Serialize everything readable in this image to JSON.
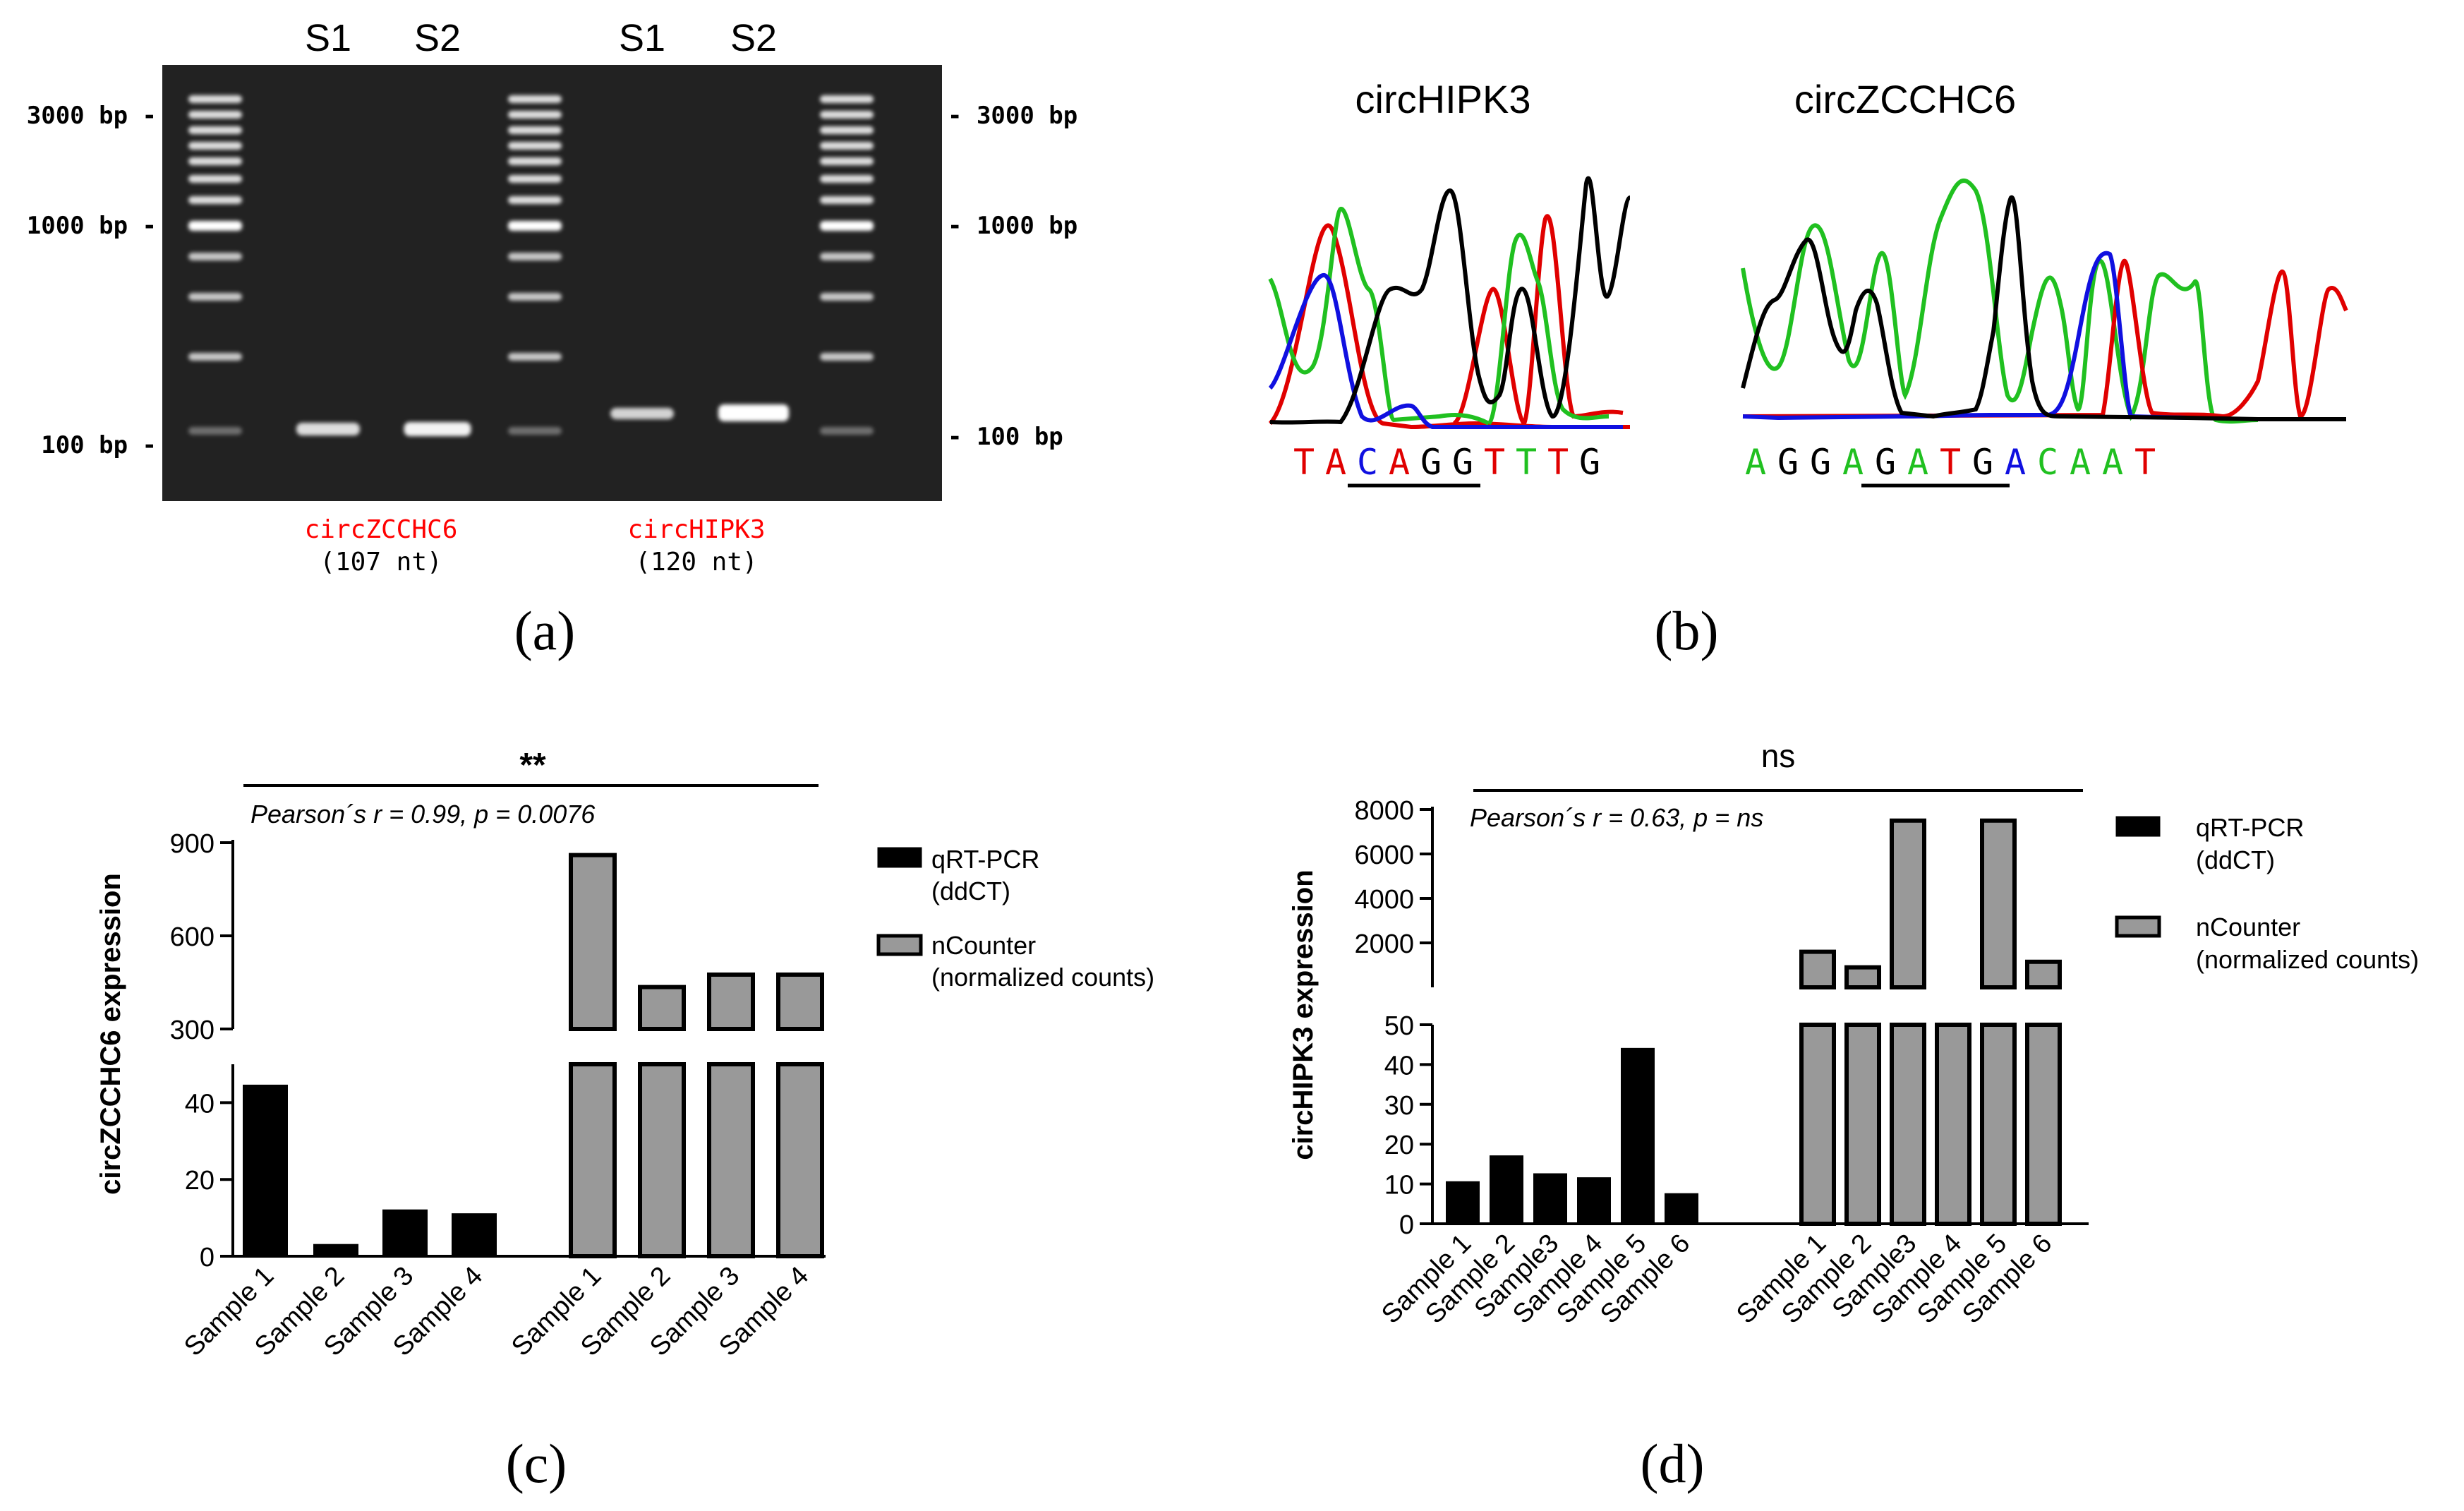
{
  "panels": {
    "a": {
      "label": "(a)",
      "lane_headers": [
        "S1",
        "S2",
        "S1",
        "S2"
      ],
      "ladder_left": [
        "3000 bp -",
        "1000 bp -",
        "100 bp -"
      ],
      "ladder_right": [
        "- 3000 bp",
        "- 1000 bp",
        "- 100 bp"
      ],
      "products": [
        {
          "name": "circZCCHC6",
          "size": "(107 nt)"
        },
        {
          "name": "circHIPK3",
          "size": "(120 nt)"
        }
      ],
      "colors": {
        "product_name": "#ff0000",
        "gel_bg": "#202020"
      }
    },
    "b": {
      "label": "(b)",
      "titles": [
        "circHIPK3",
        "circZCCHC6"
      ],
      "seq1": [
        "T",
        "A",
        "C",
        "A",
        "G",
        "G",
        "T",
        "T",
        "T",
        "G"
      ],
      "seq1_colors": [
        "#e00000",
        "#e00000",
        "#1010e0",
        "#e00000",
        "#000000",
        "#000000",
        "#e00000",
        "#20c020",
        "#e00000",
        "#000000"
      ],
      "seq2": [
        "A",
        "G",
        "G",
        "A",
        "G",
        "A",
        "T",
        "G",
        "A",
        "C",
        "A",
        "A",
        "T"
      ],
      "seq2_colors": [
        "#20c020",
        "#000000",
        "#000000",
        "#20c020",
        "#000000",
        "#20c020",
        "#e00000",
        "#000000",
        "#1010e0",
        "#20c020",
        "#20c020",
        "#20c020",
        "#e00000"
      ]
    },
    "c": {
      "label": "(c)",
      "significance": "**",
      "stats_text": "Pearson´s r = 0.99, p = 0.0076",
      "ylabel": "circZCCHC6 expression",
      "legend": [
        {
          "label": "qRT-PCR",
          "sub": "(ddCT)"
        },
        {
          "label": "nCounter",
          "sub": "(normalized counts)"
        }
      ]
    },
    "d": {
      "label": "(d)",
      "significance": "ns",
      "stats_text": "Pearson´s r = 0.63, p = ns",
      "ylabel": "circHIPK3 expression",
      "legend": [
        {
          "label": "qRT-PCR",
          "sub": "(ddCT)"
        },
        {
          "label": "nCounter",
          "sub": "(normalized counts)"
        }
      ]
    }
  },
  "chart_data": [
    {
      "type": "bar",
      "panel": "c",
      "ylabel": "circZCCHC6 expression",
      "title": "Pearson´s r = 0.99, p = 0.0076",
      "y_axis_break": {
        "lower": [
          0,
          50
        ],
        "upper": [
          300,
          900
        ]
      },
      "lower_ticks": [
        0,
        20,
        40
      ],
      "upper_ticks": [
        300,
        600,
        900
      ],
      "series": [
        {
          "name": "qRT-PCR (ddCT)",
          "color": "#000000",
          "categories": [
            "Sample 1",
            "Sample 2",
            "Sample 3",
            "Sample 4"
          ],
          "values": [
            44.5,
            3,
            12,
            11
          ]
        },
        {
          "name": "nCounter (normalized counts)",
          "color": "#999999",
          "categories": [
            "Sample 1",
            "Sample 2",
            "Sample 3",
            "Sample 4"
          ],
          "values": [
            860,
            435,
            475,
            475
          ]
        }
      ]
    },
    {
      "type": "bar",
      "panel": "d",
      "ylabel": "circHIPK3 expression",
      "title": "Pearson´s r = 0.63, p = ns",
      "y_axis_break": {
        "lower": [
          0,
          50
        ],
        "upper": [
          0,
          8000
        ]
      },
      "lower_ticks": [
        0,
        10,
        20,
        30,
        40,
        50
      ],
      "upper_ticks": [
        2000,
        4000,
        6000,
        8000
      ],
      "series": [
        {
          "name": "qRT-PCR (ddCT)",
          "color": "#000000",
          "categories": [
            "Sample 1",
            "Sample 2",
            "Sample3",
            "Sample 4",
            "Sample 5",
            "Sample 6"
          ],
          "values": [
            10.5,
            17,
            12.5,
            11.5,
            44,
            7.5
          ]
        },
        {
          "name": "nCounter (normalized counts)",
          "color": "#999999",
          "categories": [
            "Sample 1",
            "Sample 2",
            "Sample3",
            "Sample 4",
            "Sample 5",
            "Sample 6"
          ],
          "values": [
            1600,
            900,
            7500,
            50,
            7500,
            1150
          ]
        }
      ]
    }
  ]
}
